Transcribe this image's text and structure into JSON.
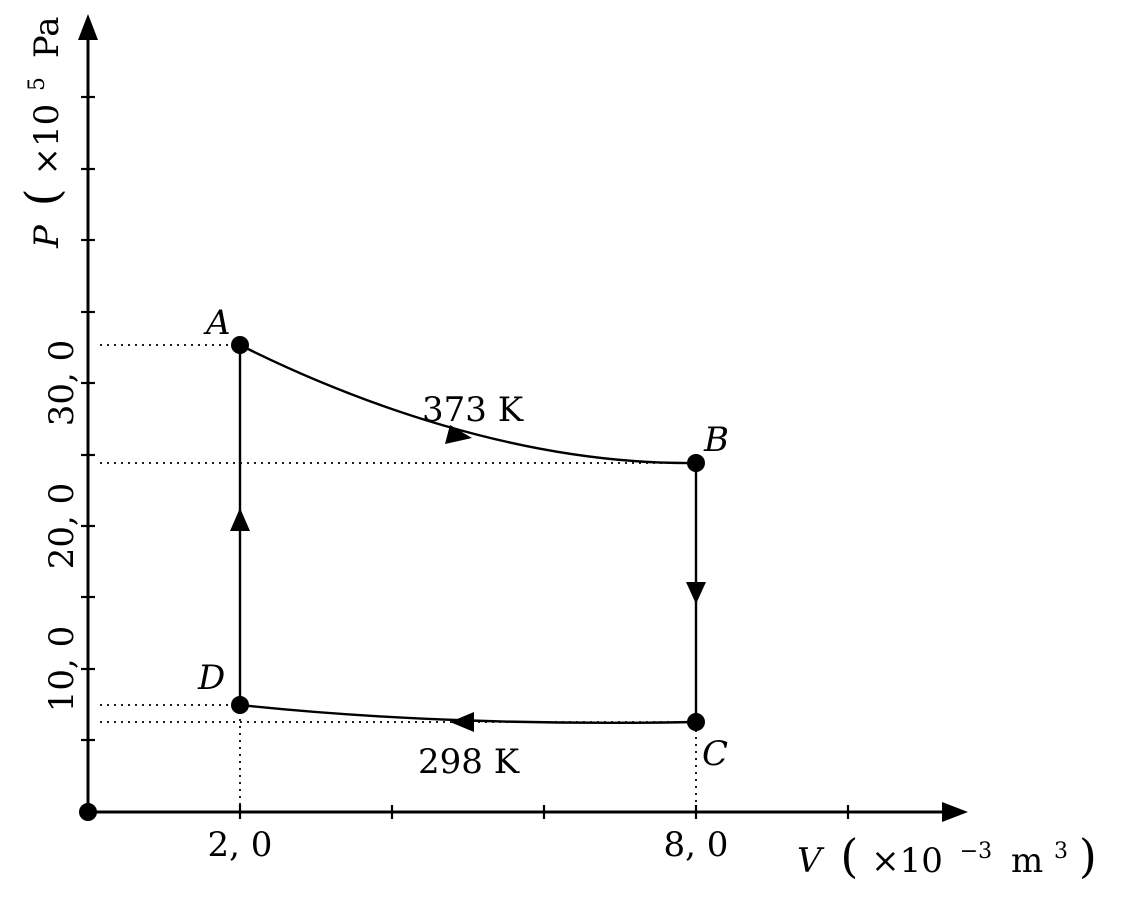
{
  "axes": {
    "x": {
      "symbol": "V",
      "unit_prefix": "×10",
      "unit_exponent": "−3",
      "unit": "m",
      "unit_power": "3",
      "tick_labels": [
        "2, 0",
        "8, 0"
      ]
    },
    "y": {
      "symbol": "P",
      "unit_prefix": "×10",
      "unit_exponent": "5",
      "unit": "Pa",
      "tick_labels": [
        "10, 0",
        "20, 0",
        "30, 0"
      ]
    }
  },
  "states": [
    {
      "label": "A",
      "V": 2.0,
      "P": 32.5
    },
    {
      "label": "B",
      "V": 8.0,
      "P": 24.3
    },
    {
      "label": "C",
      "V": 8.0,
      "P": 6.1
    },
    {
      "label": "D",
      "V": 2.0,
      "P": 7.4
    }
  ],
  "processes": [
    {
      "from": "A",
      "to": "B",
      "type": "isotherm",
      "label": "373 K"
    },
    {
      "from": "B",
      "to": "C",
      "type": "isochoric"
    },
    {
      "from": "C",
      "to": "D",
      "type": "isotherm",
      "label": "298 K"
    },
    {
      "from": "D",
      "to": "A",
      "type": "isochoric"
    }
  ]
}
